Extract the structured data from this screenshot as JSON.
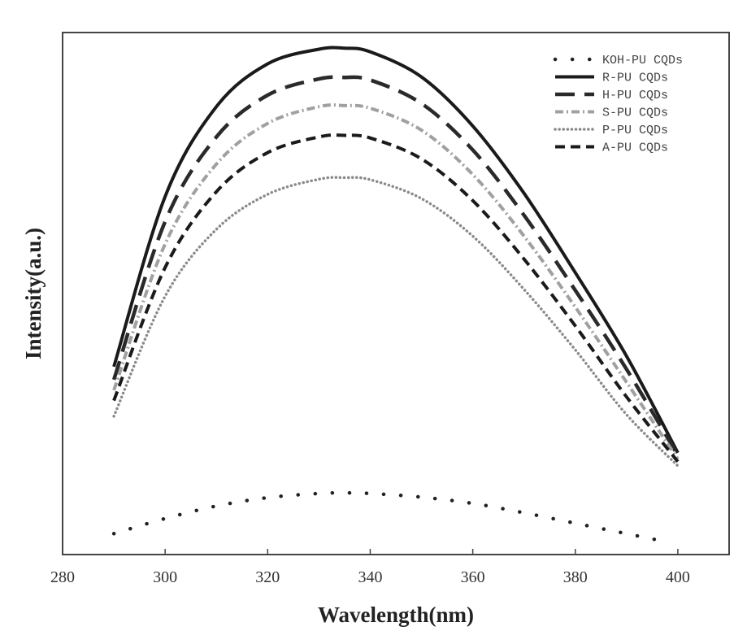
{
  "chart_data": {
    "type": "line",
    "title": "",
    "xlabel": "Wavelength(nm)",
    "ylabel": "Intensity(a.u.)",
    "xlim": [
      280,
      410
    ],
    "ylim": [
      0,
      100
    ],
    "x_ticks": [
      "280",
      "300",
      "320",
      "340",
      "360",
      "380",
      "400"
    ],
    "y_ticks": [],
    "grid": false,
    "legend_position": "top-right",
    "series": [
      {
        "name": "KOH-PU CQDs",
        "style": "sparse-dot",
        "color": "#222222",
        "x": [
          290,
          300,
          310,
          320,
          330,
          335,
          340,
          350,
          360,
          370,
          380,
          390,
          397
        ],
        "y": [
          4.0,
          6.9,
          9.3,
          10.9,
          11.7,
          11.8,
          11.7,
          11.0,
          9.8,
          8.0,
          6.0,
          4.0,
          2.6
        ]
      },
      {
        "name": "R-PU CQDs",
        "style": "solid",
        "color": "#1a1a1a",
        "x": [
          290,
          300,
          310,
          320,
          330,
          335,
          340,
          350,
          360,
          370,
          380,
          390,
          400
        ],
        "y": [
          36.0,
          68.6,
          85.8,
          94.0,
          96.8,
          97.0,
          96.3,
          91.5,
          82.1,
          69.2,
          54.0,
          38.0,
          19.5
        ]
      },
      {
        "name": "H-PU CQDs",
        "style": "long-dash",
        "color": "#2a2a2a",
        "x": [
          290,
          300,
          310,
          320,
          330,
          335,
          340,
          350,
          360,
          370,
          380,
          390,
          400
        ],
        "y": [
          33.5,
          63.8,
          80.0,
          88.0,
          91.1,
          91.4,
          90.9,
          86.4,
          77.5,
          65.0,
          50.6,
          35.5,
          19.0
        ]
      },
      {
        "name": "S-PU CQDs",
        "style": "dash-dot",
        "color": "#a0a0a0",
        "x": [
          290,
          300,
          310,
          320,
          330,
          335,
          340,
          350,
          360,
          370,
          380,
          390,
          400
        ],
        "y": [
          31.5,
          59.5,
          74.8,
          82.6,
          85.8,
          86.0,
          85.5,
          81.3,
          72.8,
          61.0,
          47.4,
          33.0,
          18.3
        ]
      },
      {
        "name": "P-PU CQDs",
        "style": "dot",
        "color": "#8a8a8a",
        "x": [
          290,
          300,
          310,
          320,
          330,
          335,
          340,
          350,
          360,
          370,
          380,
          390,
          400
        ],
        "y": [
          26.5,
          49.5,
          62.3,
          69.0,
          71.9,
          72.2,
          71.8,
          68.2,
          61.0,
          50.8,
          39.2,
          26.8,
          17.0
        ]
      },
      {
        "name": "A-PU CQDs",
        "style": "short-dash",
        "color": "#1a1a1a",
        "x": [
          290,
          300,
          310,
          320,
          330,
          335,
          340,
          350,
          360,
          370,
          380,
          390,
          400
        ],
        "y": [
          29.5,
          55.0,
          69.5,
          77.0,
          80.0,
          80.3,
          79.8,
          75.8,
          67.8,
          56.6,
          43.8,
          30.2,
          17.8
        ]
      }
    ]
  }
}
